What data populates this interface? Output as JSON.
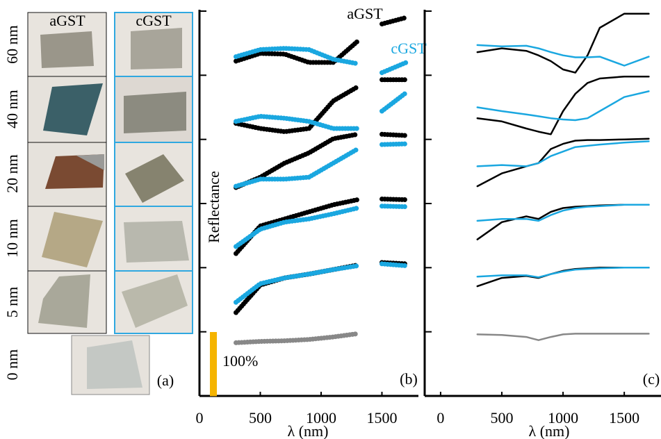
{
  "photos": {
    "column_labels": [
      "aGST",
      "cGST"
    ],
    "row_labels": [
      "60 nm",
      "40 nm",
      "20 nm",
      "10 nm",
      "5 nm",
      "0 nm"
    ],
    "panel_label": "(a)"
  },
  "chart_data": [
    {
      "type": "line",
      "style": "dots",
      "panel_label": "(b)",
      "y_label": "Reflectance",
      "x_label": "λ (nm)",
      "xlim": [
        0,
        1800
      ],
      "xticks": [
        0,
        500,
        1000,
        1500
      ],
      "ylim": [
        0,
        600
      ],
      "yticks": [
        100,
        200,
        300,
        400,
        500,
        600
      ],
      "annotations": [
        {
          "text": "aGST",
          "color": "#000000"
        },
        {
          "text": "cGST",
          "color": "#1aa7e0"
        }
      ],
      "scale_bar": {
        "value": 100,
        "label": "100%",
        "color": "#f5b400"
      },
      "x": [
        300,
        500,
        700,
        900,
        1100,
        1300,
        1400,
        1500,
        1700
      ],
      "series": [
        {
          "color": "#888888",
          "values": [
            83,
            85,
            86,
            88,
            92,
            97,
            null,
            97,
            null
          ]
        },
        {
          "color": "#000000",
          "values": [
            130,
            173,
            184,
            190,
            197,
            204,
            null,
            208,
            206
          ]
        },
        {
          "color": "#1aa7e0",
          "values": [
            146,
            175,
            184,
            190,
            197,
            203,
            null,
            206,
            203
          ]
        },
        {
          "color": "#000000",
          "values": [
            222,
            265,
            276,
            287,
            298,
            306,
            null,
            307,
            306
          ]
        },
        {
          "color": "#1aa7e0",
          "values": [
            233,
            260,
            271,
            276,
            284,
            293,
            null,
            296,
            295
          ]
        },
        {
          "color": "#000000",
          "values": [
            325,
            341,
            363,
            379,
            401,
            408,
            null,
            408,
            406
          ]
        },
        {
          "color": "#1aa7e0",
          "values": [
            327,
            338,
            338,
            341,
            363,
            385,
            null,
            392,
            393
          ]
        },
        {
          "color": "#000000",
          "values": [
            425,
            417,
            412,
            417,
            460,
            482,
            null,
            493,
            493
          ]
        },
        {
          "color": "#1aa7e0",
          "values": [
            428,
            436,
            433,
            428,
            417,
            417,
            null,
            444,
            473
          ]
        },
        {
          "color": "#000000",
          "values": [
            522,
            534,
            533,
            520,
            520,
            553,
            null,
            580,
            590
          ]
        },
        {
          "color": "#1aa7e0",
          "values": [
            529,
            540,
            542,
            540,
            525,
            518,
            null,
            504,
            520
          ]
        }
      ]
    },
    {
      "type": "line",
      "style": "solid",
      "panel_label": "(c)",
      "x_label": "λ (nm)",
      "xlim": [
        -130,
        1800
      ],
      "xticks": [
        0,
        500,
        1000,
        1500
      ],
      "ylim": [
        0,
        600
      ],
      "yticks": [
        100,
        200,
        300,
        400,
        500,
        600
      ],
      "x": [
        300,
        500,
        700,
        800,
        900,
        1000,
        1100,
        1200,
        1300,
        1500,
        1700
      ],
      "series": [
        {
          "color": "#888888",
          "values": [
            96,
            95,
            92,
            87,
            92,
            96,
            97,
            97,
            97,
            97,
            97
          ]
        },
        {
          "color": "#000000",
          "values": [
            171,
            184,
            187,
            184,
            190,
            195,
            198,
            199,
            200,
            200,
            200
          ]
        },
        {
          "color": "#1aa7e0",
          "values": [
            186,
            188,
            188,
            185,
            190,
            194,
            197,
            198,
            199,
            200,
            200
          ]
        },
        {
          "color": "#000000",
          "values": [
            244,
            271,
            280,
            276,
            287,
            293,
            295,
            296,
            297,
            298,
            298
          ]
        },
        {
          "color": "#1aa7e0",
          "values": [
            273,
            276,
            276,
            273,
            282,
            289,
            293,
            295,
            296,
            298,
            298
          ]
        },
        {
          "color": "#000000",
          "values": [
            327,
            347,
            358,
            363,
            385,
            393,
            398,
            399,
            399,
            400,
            401
          ]
        },
        {
          "color": "#1aa7e0",
          "values": [
            358,
            360,
            358,
            363,
            374,
            381,
            388,
            390,
            392,
            395,
            397
          ]
        },
        {
          "color": "#000000",
          "values": [
            433,
            428,
            417,
            412,
            408,
            444,
            471,
            488,
            495,
            498,
            498
          ]
        },
        {
          "color": "#1aa7e0",
          "values": [
            450,
            444,
            439,
            436,
            433,
            431,
            430,
            433,
            444,
            466,
            475
          ]
        },
        {
          "color": "#000000",
          "values": [
            536,
            542,
            538,
            531,
            522,
            509,
            504,
            531,
            574,
            596,
            596
          ]
        },
        {
          "color": "#1aa7e0",
          "values": [
            547,
            545,
            546,
            542,
            536,
            531,
            528,
            528,
            529,
            515,
            529
          ]
        }
      ]
    }
  ]
}
